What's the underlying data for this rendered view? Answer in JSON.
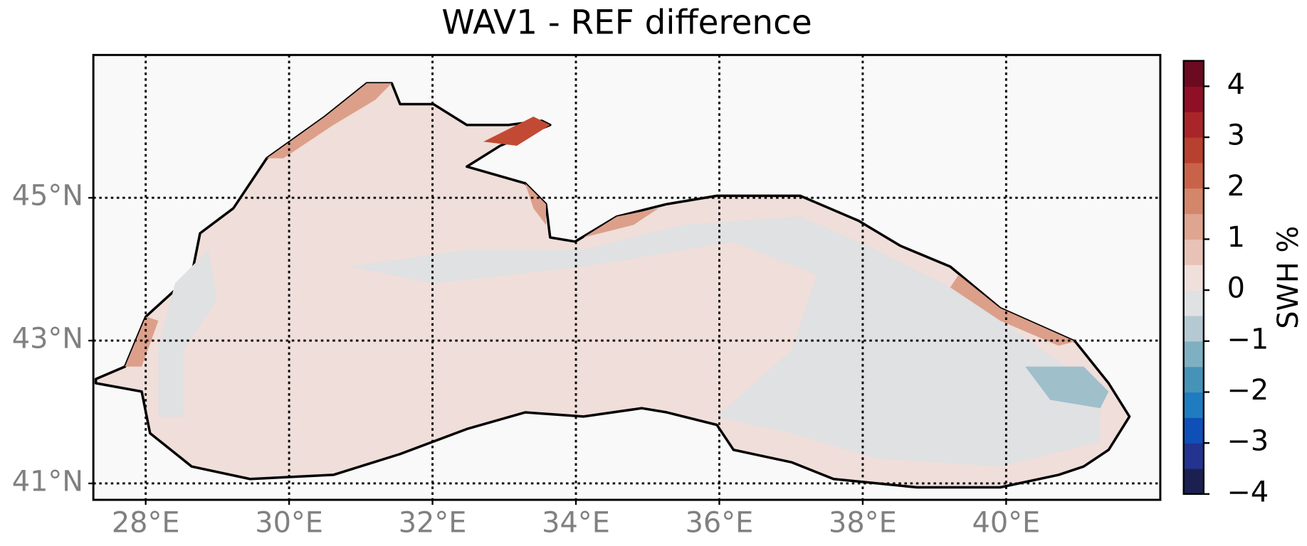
{
  "chart_data": {
    "type": "contour-map",
    "title": "WAV1 - REF difference",
    "xlim": [
      27.27,
      42.15
    ],
    "ylim": [
      40.77,
      47.0
    ],
    "xticks": [
      {
        "value": 28,
        "label": "28°E"
      },
      {
        "value": 30,
        "label": "30°E"
      },
      {
        "value": 32,
        "label": "32°E"
      },
      {
        "value": 34,
        "label": "34°E"
      },
      {
        "value": 36,
        "label": "36°E"
      },
      {
        "value": 38,
        "label": "38°E"
      },
      {
        "value": 40,
        "label": "40°E"
      }
    ],
    "yticks": [
      {
        "value": 41,
        "label": "41°N"
      },
      {
        "value": 43,
        "label": "43°N"
      },
      {
        "value": 45,
        "label": "45°N"
      }
    ],
    "grid": true,
    "colorbar": {
      "label": "SWH %",
      "clim": [
        -4,
        4.5
      ],
      "ticks": [
        {
          "value": -4,
          "label": "−4"
        },
        {
          "value": -3,
          "label": "−3"
        },
        {
          "value": -2,
          "label": "−2"
        },
        {
          "value": -1,
          "label": "−1"
        },
        0,
        1,
        2,
        3,
        4
      ],
      "levels": [
        -4,
        -3.5,
        -3,
        -2.5,
        -2,
        -1.5,
        -1,
        -0.5,
        0,
        0.5,
        1,
        1.5,
        2,
        2.5,
        3,
        3.5,
        4,
        4.5
      ],
      "colors": [
        "#1b2050",
        "#23338f",
        "#0f50b8",
        "#1f7cc0",
        "#4593b6",
        "#7fb0c2",
        "#b5c9d2",
        "#dfe1e3",
        "#f0e0dc",
        "#e8c2b6",
        "#dea590",
        "#d4866b",
        "#c8634a",
        "#b8402e",
        "#a9252a",
        "#8f0f26",
        "#6b0a20"
      ]
    }
  }
}
